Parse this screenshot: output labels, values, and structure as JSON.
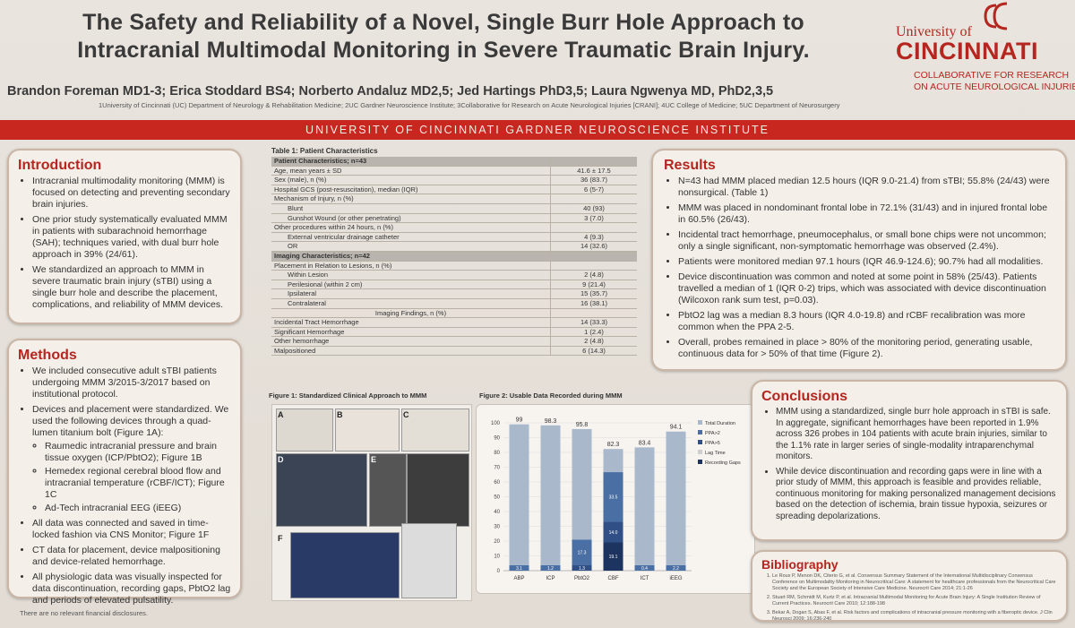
{
  "header": {
    "title_line1": "The Safety and Reliability of a Novel, Single Burr Hole Approach to",
    "title_line2": "Intracranial Multimodal Monitoring in Severe Traumatic Brain Injury.",
    "authors": "Brandon Foreman MD1-3; Erica Stoddard BS4; Norberto Andaluz MD2,5; Jed Hartings PhD3,5; Laura Ngwenya MD, PhD2,3,5",
    "affiliations": "1University of Cincinnati (UC) Department of Neurology & Rehabilitation Medicine; 2UC Gardner Neuroscience Institute; 3Collaborative for Research on Acute Neurological Injuries [CRANI]; 4UC College of Medicine; 5UC Department of Neurosurgery",
    "logo_university": "University of",
    "logo_name": "CINCINNATI",
    "logo_sub1": "COLLABORATIVE FOR RESEARCH",
    "logo_sub2": "ON ACUTE NEUROLOGICAL INJURIES",
    "banner": "UNIVERSITY OF CINCINNATI GARDNER NEUROSCIENCE INSTITUTE"
  },
  "introduction": {
    "heading": "Introduction",
    "items": [
      "Intracranial multimodality monitoring (MMM) is focused on detecting and preventing secondary brain injuries.",
      "One prior study systematically evaluated MMM in patients with subarachnoid hemorrhage (SAH); techniques varied, with dual burr hole approach in 39% (24/61).",
      "We standardized an approach to MMM in severe traumatic brain injury (sTBI) using a single burr hole and describe the placement, complications, and reliability of MMM devices."
    ]
  },
  "methods": {
    "heading": "Methods",
    "item1": "We included consecutive adult sTBI patients undergoing MMM 3/2015-3/2017 based on institutional protocol.",
    "item2": "Devices and placement were standardized. We used the following devices through a quad-lumen titanium bolt (Figure 1A):",
    "sub": [
      "Raumedic intracranial pressure and brain tissue oxygen (ICP/PbtO2); Figure 1B",
      "Hemedex regional cerebral blood flow and intracranial temperature (rCBF/ICT); Figure 1C",
      "Ad-Tech intracranial EEG (iEEG)"
    ],
    "item3": "All data was connected and saved in time-locked fashion via CNS Monitor; Figure 1F",
    "item4": "CT data for placement, device malpositioning and device-related hemorrhage.",
    "item5": "All physiologic data was visually inspected for data discontinuation, recording gaps, PbtO2 lag and periods of elevated pulsatility."
  },
  "footnote": "There are no relevant financial disclosures.",
  "table1": {
    "title": "Table 1: Patient Characteristics",
    "header1": "Patient Characteristics; n=43",
    "rows1": [
      {
        "label": "Age, mean years ± SD",
        "value": "41.6 ± 17.5"
      },
      {
        "label": "Sex (male), n (%)",
        "value": "36 (83.7)"
      },
      {
        "label": "Hospital GCS (post-resuscitation), median (IQR)",
        "value": "6 (5-7)"
      },
      {
        "label": "Mechanism of Injury, n (%)",
        "value": ""
      },
      {
        "label": "Blunt",
        "value": "40 (93)"
      },
      {
        "label": "Gunshot Wound (or other penetrating)",
        "value": "3 (7.0)"
      },
      {
        "label": "Other procedures within 24 hours, n (%)",
        "value": ""
      },
      {
        "label": "External ventricular drainage catheter",
        "value": "4 (9.3)"
      },
      {
        "label": "OR",
        "value": "14 (32.6)"
      }
    ],
    "header2": "Imaging Characteristics; n=42",
    "rows2": [
      {
        "label": "Placement in Relation to Lesions, n (%)",
        "value": ""
      },
      {
        "label": "Within Lesion",
        "value": "2 (4.8)"
      },
      {
        "label": "Perilesional (within 2 cm)",
        "value": "9 (21.4)"
      },
      {
        "label": "Ipsilateral",
        "value": "15 (35.7)"
      },
      {
        "label": "Contralateral",
        "value": "16 (38.1)"
      }
    ],
    "subheader3": "Imaging Findings, n (%)",
    "rows3": [
      {
        "label": "Incidental Tract Hemorrhage",
        "value": "14 (33.3)"
      },
      {
        "label": "Significant Hemorrhage",
        "value": "1 (2.4)"
      },
      {
        "label": "Other hemorrhage",
        "value": "2 (4.8)"
      },
      {
        "label": "Malpositioned",
        "value": "6 (14.3)"
      }
    ]
  },
  "figure1": {
    "title": "Figure 1: Standardized Clinical Approach to MMM",
    "labels": [
      "A",
      "B",
      "C",
      "D",
      "E",
      "F"
    ]
  },
  "chart_data": {
    "type": "bar",
    "title": "Figure 2: Usable Data Recorded during MMM",
    "categories": [
      "ABP",
      "ICP",
      "PbtO2",
      "CBF",
      "ICT",
      "iEEG"
    ],
    "total_duration": [
      99.0,
      98.3,
      95.8,
      82.3,
      83.4,
      94.1
    ],
    "stacked_labels": [
      {
        "category": "CBF",
        "values": [
          "33.5",
          "14.0",
          "19.1"
        ]
      },
      {
        "category": "PbtO2",
        "values": [
          "17.3",
          "1.3"
        ]
      },
      {
        "category": "ABP",
        "values": [
          "3.1"
        ]
      },
      {
        "category": "ICP",
        "values": [
          "1.2"
        ]
      },
      {
        "category": "ICT",
        "values": [
          "0.4"
        ]
      },
      {
        "category": "iEEG",
        "values": [
          "2.2"
        ]
      }
    ],
    "legend": [
      "Total Duration",
      "PPA>2",
      "PPA>5",
      "Lag Time",
      "Recording Gaps"
    ],
    "yticks": [
      0,
      10,
      20,
      30,
      40,
      50,
      60,
      70,
      80,
      90,
      100
    ],
    "ylim": [
      0,
      100
    ],
    "legend_position": "right"
  },
  "results": {
    "heading": "Results",
    "items": [
      "N=43 had MMM placed median 12.5 hours (IQR 9.0-21.4) from sTBI; 55.8% (24/43) were nonsurgical. (Table 1)",
      "MMM was placed in nondominant frontal lobe in 72.1% (31/43) and in injured frontal lobe in 60.5% (26/43).",
      "Incidental tract hemorrhage, pneumocephalus, or small bone chips were not uncommon; only a single significant, non-symptomatic hemorrhage was observed (2.4%).",
      "Patients were monitored median 97.1 hours (IQR 46.9-124.6); 90.7% had all modalities.",
      "Device discontinuation was common and noted at some point in 58% (25/43). Patients travelled a median of 1 (IQR 0-2) trips, which was associated with device discontinuation (Wilcoxon rank sum test, p=0.03).",
      "PbtO2 lag was a median 8.3 hours (IQR 4.0-19.8) and rCBF recalibration was more common when the PPA 2-5.",
      "Overall, probes remained in place > 80% of the monitoring period, generating usable, continuous data for > 50% of that time (Figure 2)."
    ]
  },
  "conclusions": {
    "heading": "Conclusions",
    "items": [
      "MMM using a standardized, single burr hole approach in sTBI is safe. In aggregate, significant hemorrhages have been reported in 1.9% across 326 probes in 104 patients with acute brain injuries, similar to the 1.1% rate in larger series of single-modality intraparenchymal monitors.",
      "While device discontinuation and recording gaps were in line with a prior study of MMM, this approach is feasible and provides reliable, continuous monitoring for making personalized management decisions based on the detection of ischemia, brain tissue hypoxia, seizures or spreading depolarizations."
    ]
  },
  "bibliography": {
    "heading": "Bibliography",
    "items": [
      "Le Roux P, Menon DK, Citerio G, et al. Consensus Summary Statement of the International Multidisciplinary Consensus Conference on Multimodality Monitoring in Neurocritical Care: A statement for healthcare professionals from the Neurocritical Care Society and the European Society of Intensive Care Medicine. Neurocrit Care 2014; 21:1-26",
      "Stuart RM, Schmidt M, Kurtz P, et al. Intracranial Multimodal Monitoring for Acute Brain Injury: A Single Institution Review of Current Practices. Neurocrit Care 2010; 12:188-198",
      "Bekar A, Dogan S, Abas F, et al. Risk factors and complications of intracranial pressure monitoring with a fiberoptic device. J Clin Neurosci 2009; 16:236-240"
    ]
  }
}
